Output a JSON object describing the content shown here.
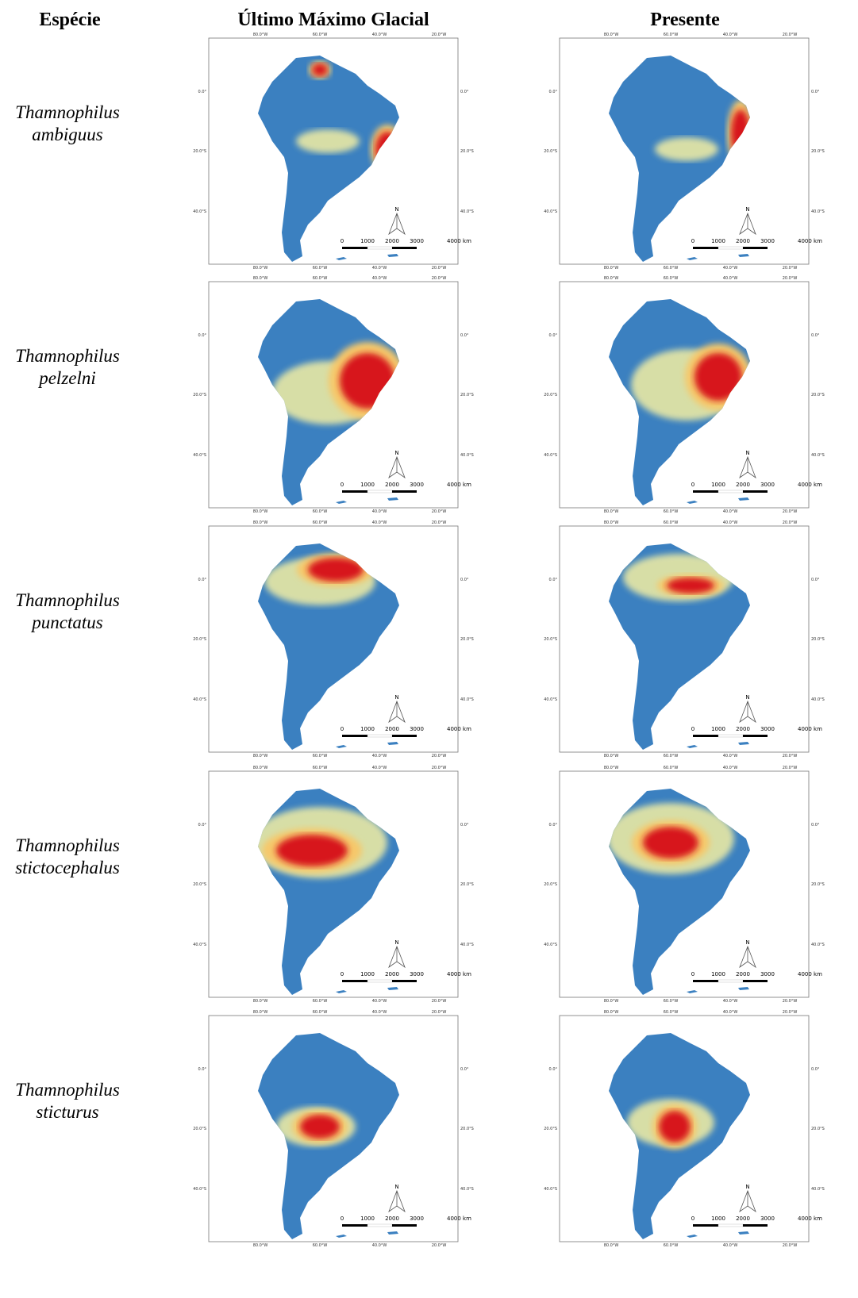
{
  "header": {
    "species": "Espécie",
    "lgm": "Último Máximo Glacial",
    "present": "Presente"
  },
  "rows": [
    [
      "Thamnophilus",
      "ambiguus"
    ],
    [
      "Thamnophilus",
      "pelzelni"
    ],
    [
      "Thamnophilus",
      "punctatus"
    ],
    [
      "Thamnophilus",
      "stictocephalus"
    ],
    [
      "Thamnophilus",
      "sticturus"
    ]
  ],
  "map_labels": {
    "top": [
      "80.0°W",
      "60.0°W",
      "40.0°W",
      "20.0°W"
    ],
    "side": [
      "0.0°",
      "20.0°S",
      "40.0°S"
    ],
    "scale": [
      "0",
      "1000",
      "2000",
      "3000",
      "4000 km"
    ],
    "north": "N"
  }
}
